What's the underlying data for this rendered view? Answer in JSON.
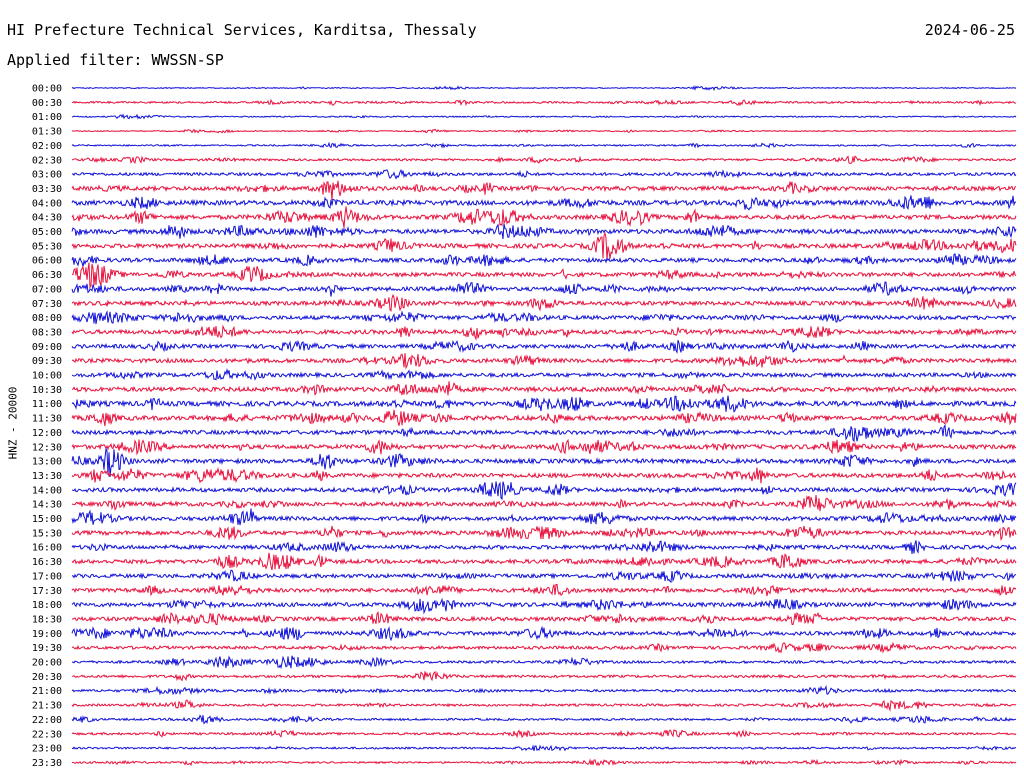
{
  "header": {
    "title": "HI Prefecture Technical Services, Karditsa, Thessaly",
    "date": "2024-06-25",
    "filter_label": "Applied filter: WWSSN-SP"
  },
  "chart_data": {
    "type": "line",
    "title": "HI Prefecture Technical Services, Karditsa, Thessaly",
    "ylabel": "HNZ - 20000",
    "xlabel": "",
    "categories": [
      "00:00",
      "00:30",
      "01:00",
      "01:30",
      "02:00",
      "02:30",
      "03:00",
      "03:30",
      "04:00",
      "04:30",
      "05:00",
      "05:30",
      "06:00",
      "06:30",
      "07:00",
      "07:30",
      "08:00",
      "08:30",
      "09:00",
      "09:30",
      "10:00",
      "10:30",
      "11:00",
      "11:30",
      "12:00",
      "12:30",
      "13:00",
      "13:30",
      "14:00",
      "14:30",
      "15:00",
      "15:30",
      "16:00",
      "16:30",
      "17:00",
      "17:30",
      "18:00",
      "18:30",
      "19:00",
      "19:30",
      "20:00",
      "20:30",
      "21:00",
      "21:30",
      "22:00",
      "22:30",
      "23:00",
      "23:30"
    ],
    "colors": {
      "even": "#1010d8",
      "odd": "#e8103c",
      "text": "#000000"
    },
    "activity": [
      0.12,
      0.22,
      0.15,
      0.12,
      0.17,
      0.25,
      0.34,
      0.48,
      0.55,
      0.5,
      0.52,
      0.5,
      0.47,
      0.48,
      0.45,
      0.47,
      0.46,
      0.47,
      0.45,
      0.47,
      0.45,
      0.52,
      0.56,
      0.53,
      0.48,
      0.5,
      0.5,
      0.5,
      0.47,
      0.46,
      0.48,
      0.47,
      0.46,
      0.47,
      0.45,
      0.45,
      0.48,
      0.46,
      0.44,
      0.36,
      0.3,
      0.3,
      0.28,
      0.27,
      0.24,
      0.26,
      0.22,
      0.2
    ]
  }
}
